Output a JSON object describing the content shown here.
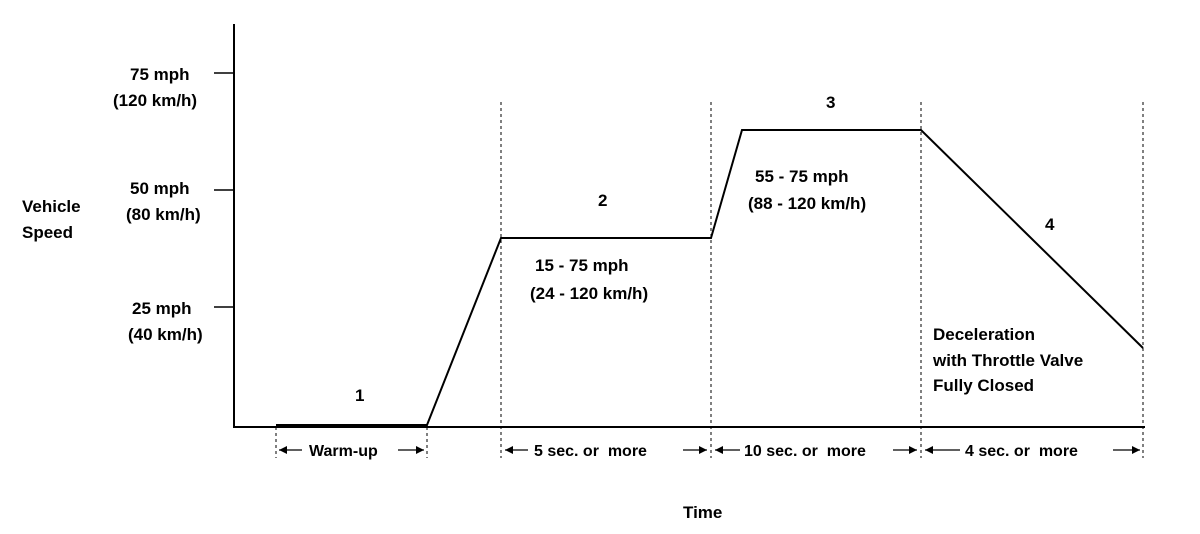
{
  "y_axis": {
    "label_line1": "Vehicle",
    "label_line2": "Speed",
    "ticks": [
      {
        "mph": "75 mph",
        "kmh": "(120 km/h)"
      },
      {
        "mph": "50 mph",
        "kmh": "(80 km/h)"
      },
      {
        "mph": "25 mph",
        "kmh": "(40 km/h)"
      }
    ]
  },
  "x_axis": {
    "label": "Time"
  },
  "phases": [
    {
      "number": "1",
      "duration": "Warm-up"
    },
    {
      "number": "2",
      "speed_line1": "15 - 75 mph",
      "speed_line2": "(24 - 120 km/h)",
      "duration": "5 sec. or  more"
    },
    {
      "number": "3",
      "speed_line1": "55 - 75 mph",
      "speed_line2": "(88 - 120 km/h)",
      "duration": "10 sec. or  more"
    },
    {
      "number": "4",
      "note_line1": "Deceleration",
      "note_line2": "with Throttle Valve",
      "note_line3": "Fully Closed",
      "duration": "4 sec. or  more"
    }
  ]
}
